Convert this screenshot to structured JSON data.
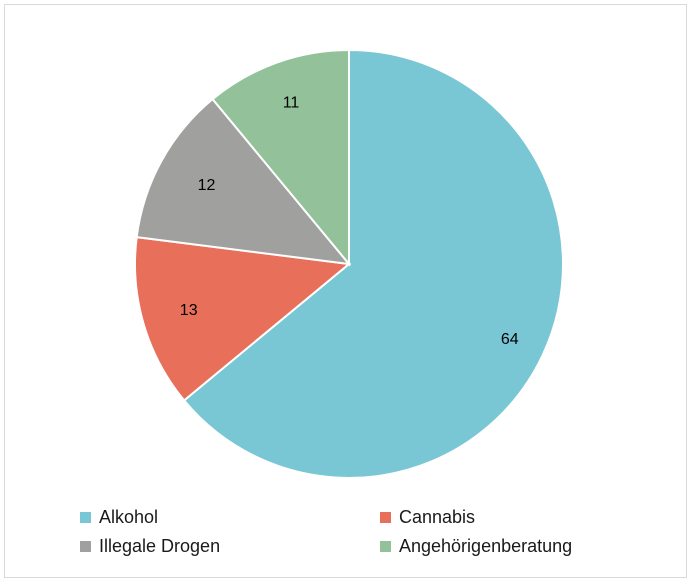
{
  "chart_data": {
    "type": "pie",
    "categories": [
      "Alkohol",
      "Cannabis",
      "Illegale Drogen",
      "Angehörigenberatung"
    ],
    "values": [
      64,
      13,
      12,
      11
    ],
    "colors": [
      "#79c7d4",
      "#e8705a",
      "#a0a09e",
      "#92c19a"
    ],
    "start_angle_deg": 0,
    "direction": "clockwise",
    "legend_position": "bottom",
    "labels": [
      "64",
      "13",
      "12",
      "11"
    ]
  },
  "legend": {
    "items": [
      {
        "label": "Alkohol",
        "color": "#79c7d4"
      },
      {
        "label": "Cannabis",
        "color": "#e8705a"
      },
      {
        "label": "Illegale Drogen",
        "color": "#a0a09e"
      },
      {
        "label": "Angehörigenberatung",
        "color": "#92c19a"
      }
    ]
  }
}
